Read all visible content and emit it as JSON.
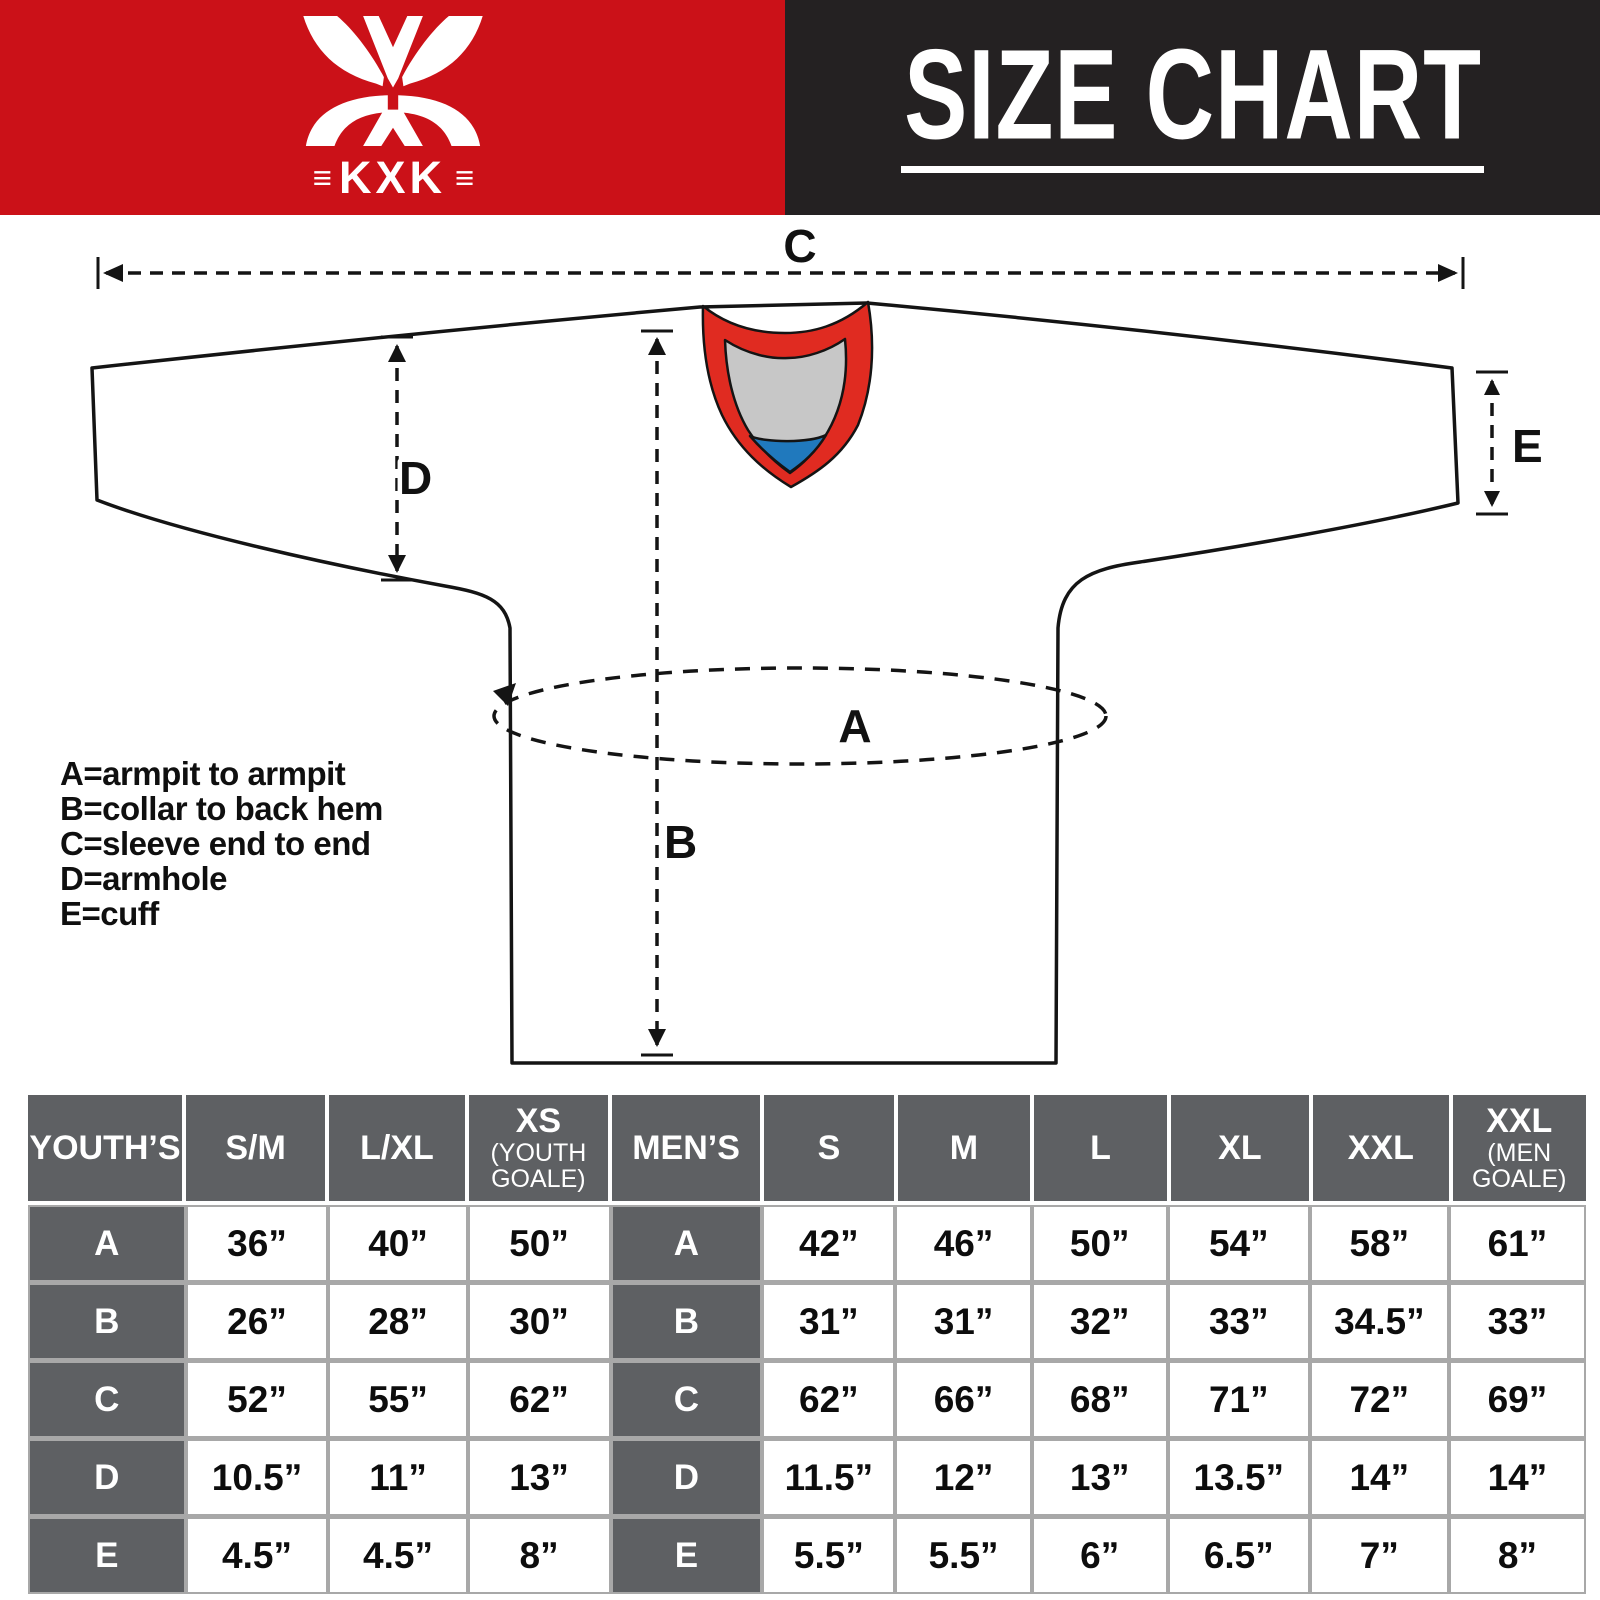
{
  "logo": {
    "text": "KXK",
    "flank_left": "≡",
    "flank_right": "≡"
  },
  "header": {
    "title": "SIZE CHART"
  },
  "colors": {
    "banner_red": "#cb1118",
    "banner_black": "#242122",
    "table_label_bg": "#5e6063",
    "table_grid_line": "#a8a8a8",
    "collar_outer_red": "#e02b21",
    "collar_inner_gray": "#c7c7c7",
    "collar_accent_blue": "#2079bd",
    "outline_black": "#141414"
  },
  "diagram": {
    "measure_labels": {
      "A": "A",
      "B": "B",
      "C": "C",
      "D": "D",
      "E": "E"
    },
    "legend": [
      "A=armpit to armpit",
      "B=collar to back hem",
      "C=sleeve end to end",
      "D=armhole",
      "E=cuff"
    ]
  },
  "size_table": {
    "youth": {
      "group_label": "YOUTH’S",
      "columns": [
        {
          "label": "S/M"
        },
        {
          "label": "L/XL"
        },
        {
          "label": "XS",
          "sublabel": "(YOUTH GOALE)"
        }
      ],
      "rows": [
        {
          "label": "A",
          "values": [
            "36”",
            "40”",
            "50”"
          ]
        },
        {
          "label": "B",
          "values": [
            "26”",
            "28”",
            "30”"
          ]
        },
        {
          "label": "C",
          "values": [
            "52”",
            "55”",
            "62”"
          ]
        },
        {
          "label": "D",
          "values": [
            "10.5”",
            "11”",
            "13”"
          ]
        },
        {
          "label": "E",
          "values": [
            "4.5”",
            "4.5”",
            "8”"
          ]
        }
      ]
    },
    "men": {
      "group_label": "MEN’S",
      "columns": [
        {
          "label": "S"
        },
        {
          "label": "M"
        },
        {
          "label": "L"
        },
        {
          "label": "XL"
        },
        {
          "label": "XXL"
        },
        {
          "label": "XXL",
          "sublabel": "(MEN GOALE)"
        }
      ],
      "rows": [
        {
          "label": "A",
          "values": [
            "42”",
            "46”",
            "50”",
            "54”",
            "58”",
            "61”"
          ]
        },
        {
          "label": "B",
          "values": [
            "31”",
            "31”",
            "32”",
            "33”",
            "34.5”",
            "33”"
          ]
        },
        {
          "label": "C",
          "values": [
            "62”",
            "66”",
            "68”",
            "71”",
            "72”",
            "69”"
          ]
        },
        {
          "label": "D",
          "values": [
            "11.5”",
            "12”",
            "13”",
            "13.5”",
            "14”",
            "14”"
          ]
        },
        {
          "label": "E",
          "values": [
            "5.5”",
            "5.5”",
            "6”",
            "6.5”",
            "7”",
            "8”"
          ]
        }
      ]
    }
  }
}
